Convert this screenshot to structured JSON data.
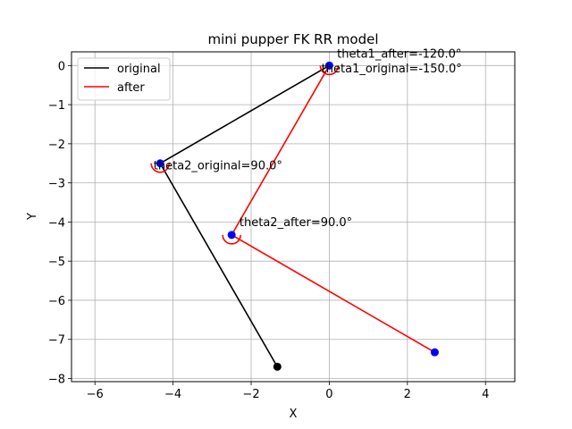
{
  "chart_data": {
    "type": "line",
    "title": "mini pupper FK RR model",
    "xlabel": "X",
    "ylabel": "Y",
    "xlim": [
      -6.6,
      4.75
    ],
    "ylim": [
      -8.08,
      0.35
    ],
    "xticks": [
      -6,
      -4,
      -2,
      0,
      2,
      4
    ],
    "xtick_labels": [
      "−6",
      "−4",
      "−2",
      "0",
      "2",
      "4"
    ],
    "yticks": [
      0,
      -1,
      -2,
      -3,
      -4,
      -5,
      -6,
      -7,
      -8
    ],
    "ytick_labels": [
      "0",
      "−1",
      "−2",
      "−3",
      "−4",
      "−5",
      "−6",
      "−7",
      "−8"
    ],
    "grid": true,
    "legend_position": "upper-left",
    "series": [
      {
        "name": "original",
        "color": "#000000",
        "x": [
          0,
          -4.33,
          -1.33
        ],
        "y": [
          0,
          -2.5,
          -7.7
        ]
      },
      {
        "name": "after",
        "color": "#ff0000",
        "x": [
          0,
          -2.5,
          2.7
        ],
        "y": [
          0,
          -4.33,
          -7.33
        ]
      }
    ],
    "points": [
      {
        "x": 0,
        "y": 0,
        "color": "#0000ff"
      },
      {
        "x": -4.33,
        "y": -2.5,
        "color": "#0000ff"
      },
      {
        "x": -1.33,
        "y": -7.7,
        "color": "#000000"
      },
      {
        "x": -2.5,
        "y": -4.33,
        "color": "#0000ff"
      },
      {
        "x": 2.7,
        "y": -7.33,
        "color": "#0000ff"
      }
    ],
    "annotations": [
      {
        "text": "theta1_after=-120.0°",
        "x": 0.2,
        "y": 0.2
      },
      {
        "text": "theta1_original=-150.0°",
        "x": -0.2,
        "y": -0.18
      },
      {
        "text": "theta2_original=90.0°",
        "x": -4.5,
        "y": -2.65
      },
      {
        "text": "theta2_after=90.0°",
        "x": -2.3,
        "y": -4.1
      }
    ],
    "arcs": [
      {
        "x": 0,
        "y": 0,
        "color": "#ff0000"
      },
      {
        "x": -4.33,
        "y": -2.5,
        "color": "#ff0000"
      },
      {
        "x": -2.5,
        "y": -4.33,
        "color": "#ff0000"
      }
    ]
  }
}
